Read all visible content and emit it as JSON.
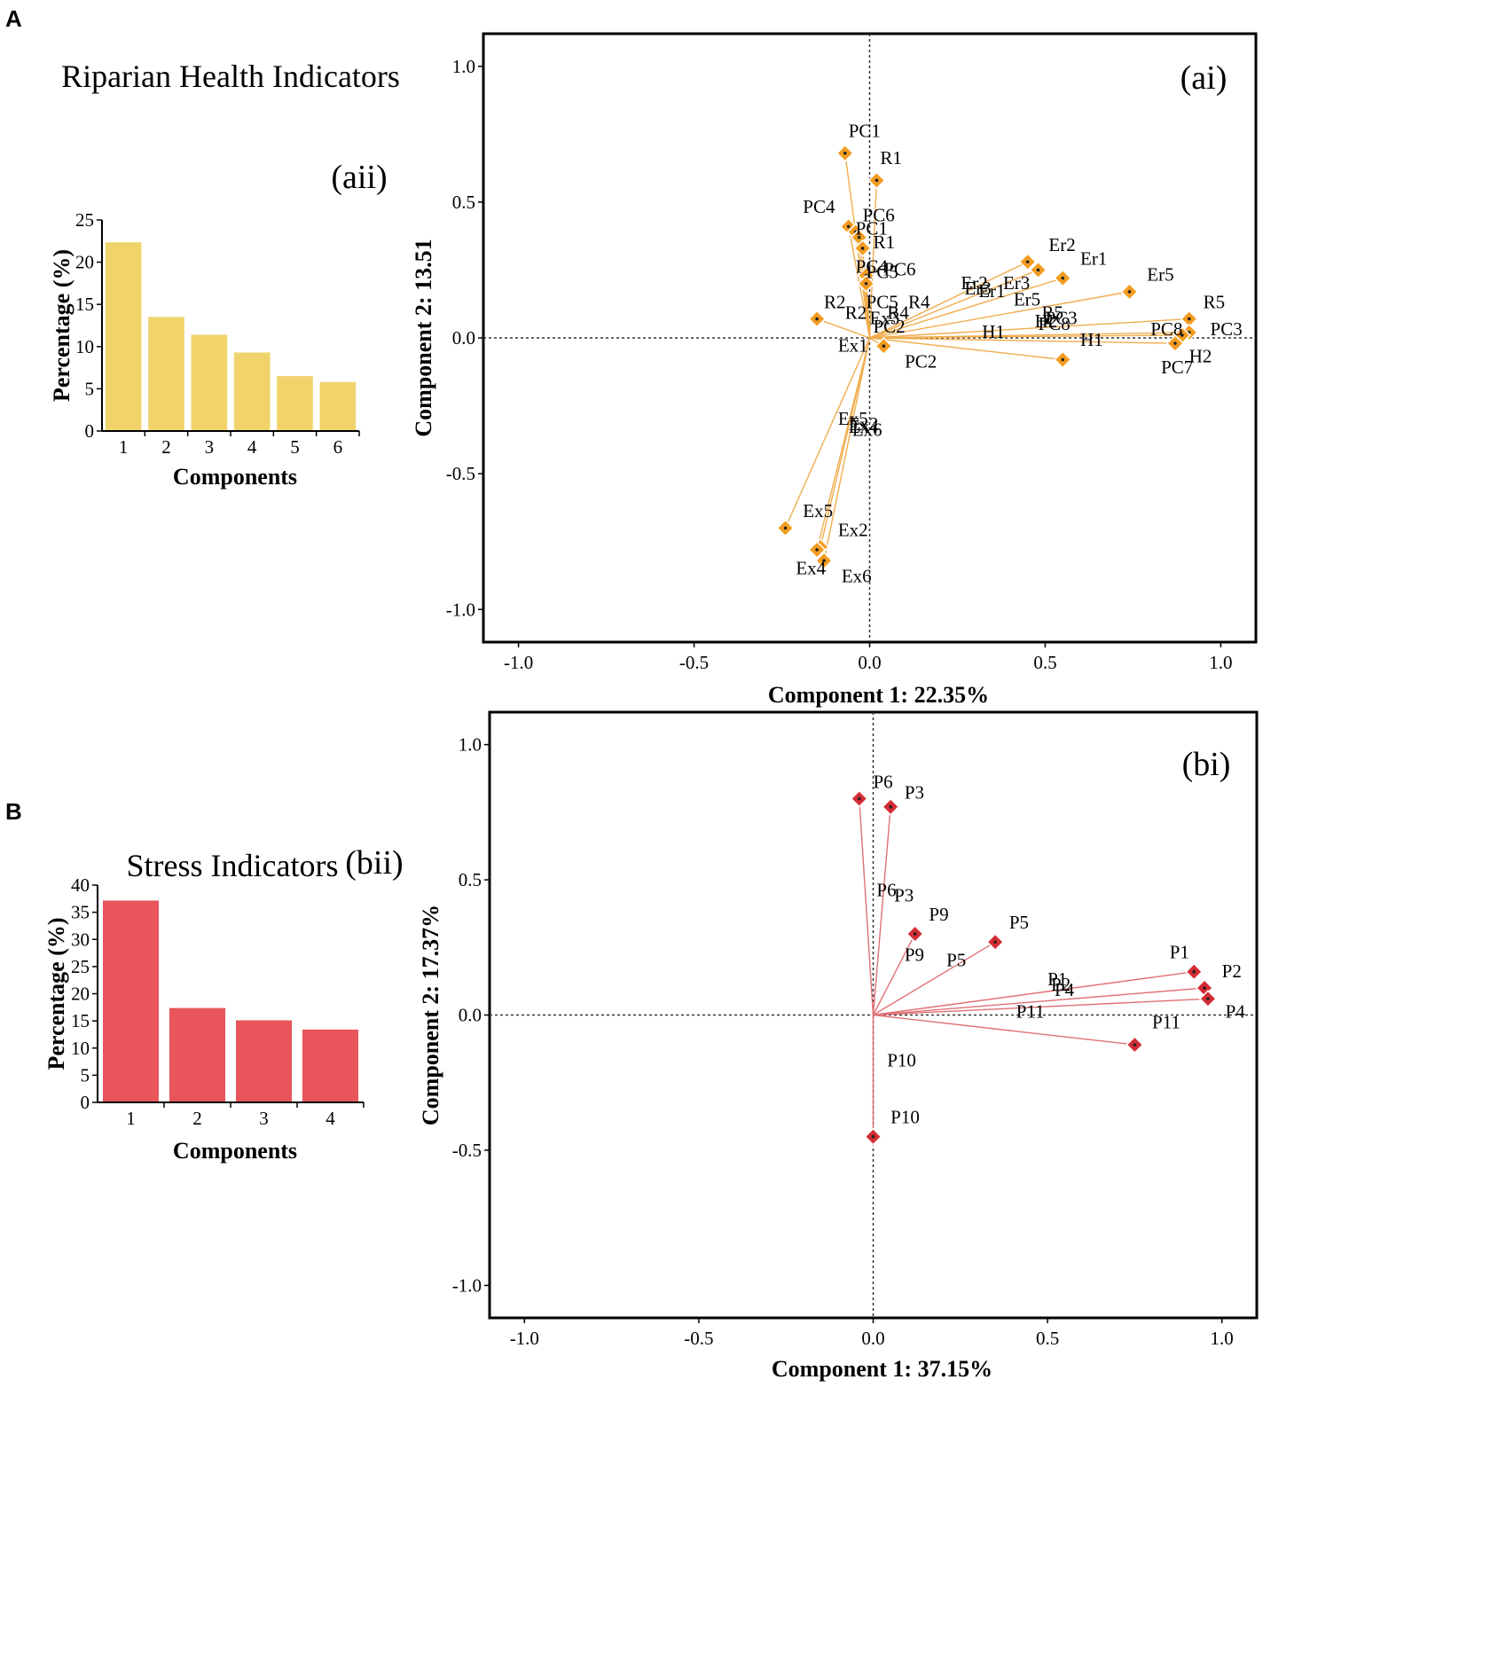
{
  "figure": {
    "panel_a_letter": "A",
    "panel_b_letter": "B",
    "panel_a_title": "Riparian Health Indicators",
    "panel_b_title": "Stress Indicators"
  },
  "chart_data": [
    {
      "id": "aii",
      "type": "bar",
      "tag": "(aii)",
      "xlabel": "Components",
      "ylabel": "Percentage (%)",
      "categories": [
        "1",
        "2",
        "3",
        "4",
        "5",
        "6"
      ],
      "values": [
        22.35,
        13.51,
        11.4,
        9.3,
        6.5,
        5.8
      ],
      "ylim": [
        0,
        25
      ],
      "yticks": [
        0,
        5,
        10,
        15,
        20,
        25
      ],
      "color": "#f0d36b"
    },
    {
      "id": "ai",
      "type": "scatter",
      "subtype": "biplot",
      "tag": "(ai)",
      "xlabel": "Component 1: 22.35%",
      "ylabel": "Component 2: 13.51",
      "xlim": [
        -1.1,
        1.1
      ],
      "ylim": [
        -1.12,
        1.12
      ],
      "xticks": [
        -1.0,
        -0.5,
        0.0,
        0.5,
        1.0
      ],
      "yticks": [
        -1.0,
        -0.5,
        0.0,
        0.5,
        1.0
      ],
      "marker_color": "#f39c1f",
      "line_color": "#f0ad4e",
      "points": [
        {
          "label": "PC1",
          "x": -0.07,
          "y": 0.68
        },
        {
          "label": "R1",
          "x": 0.02,
          "y": 0.58
        },
        {
          "label": "PC4",
          "x": -0.06,
          "y": 0.41
        },
        {
          "label": "PC6",
          "x": -0.04,
          "y": 0.39
        },
        {
          "label": "PC1",
          "x": -0.03,
          "y": 0.37
        },
        {
          "label": "R1",
          "x": -0.02,
          "y": 0.33
        },
        {
          "label": "PC4",
          "x": -0.01,
          "y": 0.23
        },
        {
          "label": "PC5",
          "x": -0.01,
          "y": 0.2
        },
        {
          "label": "R2",
          "x": -0.15,
          "y": 0.07
        },
        {
          "label": "Er2",
          "x": 0.45,
          "y": 0.28
        },
        {
          "label": "Er3",
          "x": 0.48,
          "y": 0.25
        },
        {
          "label": "Er1",
          "x": 0.55,
          "y": 0.22
        },
        {
          "label": "Er5",
          "x": 0.74,
          "y": 0.17
        },
        {
          "label": "R5",
          "x": 0.91,
          "y": 0.07
        },
        {
          "label": "PC3",
          "x": 0.91,
          "y": 0.02
        },
        {
          "label": "PC8",
          "x": 0.89,
          "y": 0.01
        },
        {
          "label": "PC7",
          "x": 0.87,
          "y": -0.02
        },
        {
          "label": "H1",
          "x": 0.55,
          "y": -0.08
        },
        {
          "label": "PC2",
          "x": 0.04,
          "y": -0.03
        },
        {
          "label": "Ex5",
          "x": -0.24,
          "y": -0.7
        },
        {
          "label": "Ex2",
          "x": -0.14,
          "y": -0.77
        },
        {
          "label": "Ex4",
          "x": -0.15,
          "y": -0.78
        },
        {
          "label": "Ex6",
          "x": -0.13,
          "y": -0.82
        }
      ],
      "annotations": [
        {
          "text": "PC1",
          "x": -0.06,
          "y": 0.74
        },
        {
          "text": "R1",
          "x": 0.03,
          "y": 0.64
        },
        {
          "text": "PC4",
          "x": -0.19,
          "y": 0.46
        },
        {
          "text": "PC6",
          "x": -0.02,
          "y": 0.43
        },
        {
          "text": "PC1",
          "x": -0.04,
          "y": 0.38
        },
        {
          "text": "R1",
          "x": 0.01,
          "y": 0.33
        },
        {
          "text": "PC4",
          "x": -0.04,
          "y": 0.24
        },
        {
          "text": "PC6",
          "x": 0.04,
          "y": 0.23
        },
        {
          "text": "PC5",
          "x": -0.01,
          "y": 0.22
        },
        {
          "text": "PC5",
          "x": -0.01,
          "y": 0.11
        },
        {
          "text": "R2",
          "x": -0.13,
          "y": 0.11
        },
        {
          "text": "R2",
          "x": -0.07,
          "y": 0.07
        },
        {
          "text": "R4",
          "x": 0.11,
          "y": 0.11
        },
        {
          "text": "Ex3",
          "x": 0.0,
          "y": 0.05
        },
        {
          "text": "R4",
          "x": 0.05,
          "y": 0.07
        },
        {
          "text": "PC2",
          "x": 0.01,
          "y": 0.02
        },
        {
          "text": "Ex1",
          "x": -0.09,
          "y": -0.05
        },
        {
          "text": "PC2",
          "x": 0.1,
          "y": -0.11
        },
        {
          "text": "Er2",
          "x": 0.26,
          "y": 0.18
        },
        {
          "text": "Er3",
          "x": 0.27,
          "y": 0.16
        },
        {
          "text": "Er1",
          "x": 0.31,
          "y": 0.15
        },
        {
          "text": "Er3",
          "x": 0.38,
          "y": 0.18
        },
        {
          "text": "Er5",
          "x": 0.41,
          "y": 0.12
        },
        {
          "text": "Er2",
          "x": 0.51,
          "y": 0.32
        },
        {
          "text": "Er1",
          "x": 0.6,
          "y": 0.27
        },
        {
          "text": "Er5",
          "x": 0.79,
          "y": 0.21
        },
        {
          "text": "R5",
          "x": 0.49,
          "y": 0.07
        },
        {
          "text": "PC3",
          "x": 0.5,
          "y": 0.05
        },
        {
          "text": "H2",
          "x": 0.47,
          "y": 0.04
        },
        {
          "text": "PC8",
          "x": 0.48,
          "y": 0.03
        },
        {
          "text": "H1",
          "x": 0.32,
          "y": 0.0
        },
        {
          "text": "H1",
          "x": 0.6,
          "y": -0.03
        },
        {
          "text": "PC8",
          "x": 0.8,
          "y": 0.01
        },
        {
          "text": "R5",
          "x": 0.95,
          "y": 0.11
        },
        {
          "text": "PC3",
          "x": 0.97,
          "y": 0.01
        },
        {
          "text": "H2",
          "x": 0.91,
          "y": -0.09
        },
        {
          "text": "PC7",
          "x": 0.83,
          "y": -0.13
        },
        {
          "text": "Ex5",
          "x": -0.09,
          "y": -0.32
        },
        {
          "text": "Ex2",
          "x": -0.06,
          "y": -0.34
        },
        {
          "text": "Ex4",
          "x": -0.06,
          "y": -0.35
        },
        {
          "text": "Ex6",
          "x": -0.05,
          "y": -0.36
        },
        {
          "text": "Ex5",
          "x": -0.19,
          "y": -0.66
        },
        {
          "text": "Ex2",
          "x": -0.09,
          "y": -0.73
        },
        {
          "text": "Ex4",
          "x": -0.21,
          "y": -0.87
        },
        {
          "text": "Ex6",
          "x": -0.08,
          "y": -0.9
        }
      ]
    },
    {
      "id": "bii",
      "type": "bar",
      "tag": "(bii)",
      "xlabel": "Components",
      "ylabel": "Percentage (%)",
      "categories": [
        "1",
        "2",
        "3",
        "4"
      ],
      "values": [
        37.15,
        17.37,
        15.1,
        13.4
      ],
      "ylim": [
        0,
        40
      ],
      "yticks": [
        0,
        5,
        10,
        15,
        20,
        25,
        30,
        35,
        40
      ],
      "color": "#e8555b"
    },
    {
      "id": "bi",
      "type": "scatter",
      "subtype": "biplot",
      "tag": "(bi)",
      "xlabel": "Component 1: 37.15%",
      "ylabel": "Component 2: 17.37%",
      "xlim": [
        -1.1,
        1.1
      ],
      "ylim": [
        -1.12,
        1.12
      ],
      "xticks": [
        -1.0,
        -0.5,
        0.0,
        0.5,
        1.0
      ],
      "yticks": [
        -1.0,
        -0.5,
        0.0,
        0.5,
        1.0
      ],
      "marker_color": "#d42c35",
      "line_color": "#e07075",
      "points": [
        {
          "label": "P6",
          "x": -0.04,
          "y": 0.8
        },
        {
          "label": "P3",
          "x": 0.05,
          "y": 0.77
        },
        {
          "label": "P9",
          "x": 0.12,
          "y": 0.3
        },
        {
          "label": "P5",
          "x": 0.35,
          "y": 0.27
        },
        {
          "label": "P1",
          "x": 0.92,
          "y": 0.16
        },
        {
          "label": "P2",
          "x": 0.95,
          "y": 0.1
        },
        {
          "label": "P4",
          "x": 0.96,
          "y": 0.06
        },
        {
          "label": "P11",
          "x": 0.75,
          "y": -0.11
        },
        {
          "label": "P10",
          "x": 0.0,
          "y": -0.45
        }
      ],
      "annotations": [
        {
          "text": "P6",
          "x": 0.0,
          "y": 0.84
        },
        {
          "text": "P3",
          "x": 0.09,
          "y": 0.8
        },
        {
          "text": "P6",
          "x": 0.01,
          "y": 0.44
        },
        {
          "text": "P3",
          "x": 0.06,
          "y": 0.42
        },
        {
          "text": "P9",
          "x": 0.16,
          "y": 0.35
        },
        {
          "text": "P5",
          "x": 0.39,
          "y": 0.32
        },
        {
          "text": "P9",
          "x": 0.09,
          "y": 0.2
        },
        {
          "text": "P5",
          "x": 0.21,
          "y": 0.18
        },
        {
          "text": "P1",
          "x": 0.85,
          "y": 0.21
        },
        {
          "text": "P2",
          "x": 1.0,
          "y": 0.14
        },
        {
          "text": "P1",
          "x": 0.5,
          "y": 0.11
        },
        {
          "text": "P2",
          "x": 0.51,
          "y": 0.09
        },
        {
          "text": "P4",
          "x": 0.52,
          "y": 0.07
        },
        {
          "text": "P11",
          "x": 0.41,
          "y": -0.01
        },
        {
          "text": "P4",
          "x": 1.01,
          "y": -0.01
        },
        {
          "text": "P11",
          "x": 0.8,
          "y": -0.05
        },
        {
          "text": "P10",
          "x": 0.04,
          "y": -0.19
        },
        {
          "text": "P10",
          "x": 0.05,
          "y": -0.4
        }
      ]
    }
  ]
}
